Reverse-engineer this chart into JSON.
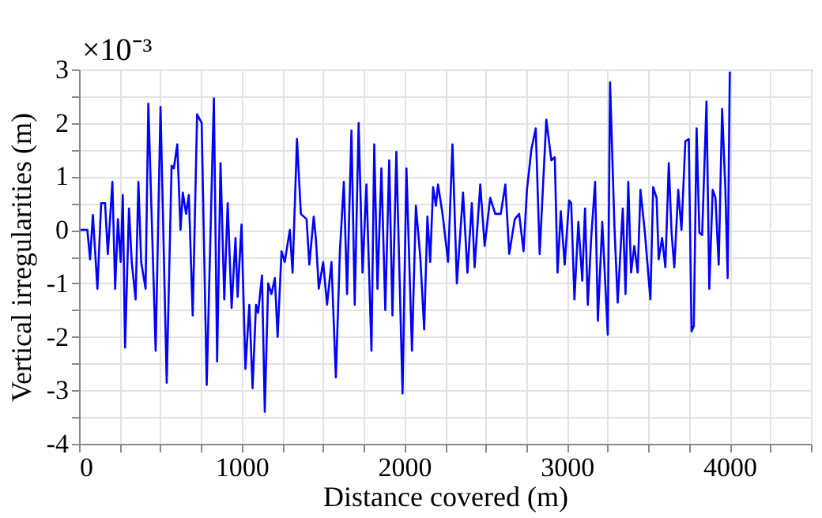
{
  "chart_data": {
    "type": "line",
    "xlabel": "Distance covered (m)",
    "ylabel": "Vertical irregularities (m)",
    "annotations": [
      "×10⁻³"
    ],
    "xlim": [
      0,
      4500
    ],
    "ylim": [
      -4,
      3
    ],
    "xticks": [
      0,
      {
        "value": 250,
        "label": null
      },
      {
        "value": 500,
        "label": null
      },
      {
        "value": 750,
        "label": null
      },
      1000,
      {
        "value": 1250,
        "label": null
      },
      {
        "value": 1500,
        "label": null
      },
      {
        "value": 1750,
        "label": null
      },
      2000,
      {
        "value": 2250,
        "label": null
      },
      {
        "value": 2500,
        "label": null
      },
      {
        "value": 2750,
        "label": null
      },
      3000,
      {
        "value": 3250,
        "label": null
      },
      {
        "value": 3500,
        "label": null
      },
      {
        "value": 3750,
        "label": null
      },
      4000,
      {
        "value": 4250,
        "label": null
      },
      {
        "value": 4500,
        "label": null
      }
    ],
    "yticks": [
      -4,
      {
        "value": -3.5,
        "label": null
      },
      -3,
      {
        "value": -2.5,
        "label": null
      },
      -2,
      {
        "value": -1.5,
        "label": null
      },
      -1,
      {
        "value": -0.5,
        "label": null
      },
      0,
      {
        "value": 0.5,
        "label": null
      },
      1,
      {
        "value": 1.5,
        "label": null
      },
      2,
      {
        "value": 2.5,
        "label": null
      },
      3
    ],
    "grid": true,
    "marker": "none",
    "line_style": "solid",
    "series": [
      {
        "color": "#0000ff",
        "x": [
          10,
          51,
          68,
          85,
          113,
          136,
          160,
          177,
          205,
          222,
          239,
          256,
          269,
          283,
          307,
          324,
          348,
          365,
          382,
          409,
          426,
          471,
          501,
          539,
          569,
          583,
          604,
          624,
          638,
          658,
          675,
          699,
          726,
          754,
          785,
          829,
          849,
          870,
          893,
          914,
          938,
          962,
          975,
          999,
          1023,
          1047,
          1067,
          1088,
          1101,
          1125,
          1142,
          1163,
          1183,
          1204,
          1221,
          1245,
          1265,
          1296,
          1313,
          1340,
          1364,
          1399,
          1416,
          1443,
          1457,
          1474,
          1501,
          1525,
          1552,
          1579,
          1604,
          1628,
          1648,
          1675,
          1695,
          1719,
          1743,
          1767,
          1798,
          1815,
          1835,
          1859,
          1883,
          1907,
          1927,
          1951,
          1989,
          2013,
          2047,
          2071,
          2098,
          2122,
          2142,
          2159,
          2177,
          2194,
          2207,
          2235,
          2269,
          2296,
          2323,
          2361,
          2388,
          2415,
          2432,
          2467,
          2494,
          2528,
          2559,
          2593,
          2621,
          2645,
          2679,
          2706,
          2733,
          2754,
          2781,
          2808,
          2832,
          2873,
          2904,
          2925,
          2942,
          2962,
          2986,
          3013,
          3026,
          3046,
          3070,
          3094,
          3111,
          3128,
          3149,
          3173,
          3190,
          3217,
          3251,
          3265,
          3292,
          3312,
          3343,
          3360,
          3377,
          3394,
          3414,
          3435,
          3452,
          3479,
          3513,
          3530,
          3551,
          3564,
          3585,
          3605,
          3626,
          3643,
          3660,
          3684,
          3704,
          3728,
          3749,
          3766,
          3780,
          3797,
          3814,
          3831,
          3858,
          3875,
          3896,
          3913,
          3933,
          3954,
          3974,
          3988,
          4001
        ],
        "values": [
          0,
          0,
          -0.55,
          0.28,
          -1.1,
          0.5,
          0.5,
          -0.45,
          0.9,
          -1.1,
          0.2,
          -0.6,
          0.65,
          -2.2,
          0.4,
          -0.6,
          -1.3,
          0.9,
          -0.6,
          -1.1,
          2.36,
          -2.26,
          2.3,
          -2.86,
          1.2,
          1.15,
          1.6,
          0,
          0.7,
          0.3,
          0.65,
          -1.6,
          2.16,
          2.0,
          -2.9,
          2.46,
          -2.46,
          1.25,
          -1.3,
          0.5,
          -1.46,
          -0.15,
          -1.25,
          0.1,
          -2.6,
          -1.4,
          -2.96,
          -1.4,
          -1.55,
          -0.85,
          -3.4,
          -1.0,
          -1.2,
          -0.9,
          -2.0,
          -0.4,
          -0.6,
          0,
          -0.8,
          1.7,
          0.3,
          0.2,
          -0.65,
          0.25,
          -0.2,
          -1.1,
          -0.6,
          -1.4,
          -0.6,
          -2.76,
          -0.4,
          0.9,
          -1.2,
          1.86,
          -1.4,
          2.0,
          -0.8,
          0.85,
          -2.26,
          1.6,
          -1.1,
          1.15,
          -1.5,
          1.3,
          -1.6,
          1.46,
          -3.06,
          1.15,
          -2.26,
          0.45,
          -0.5,
          -1.86,
          0.25,
          -0.6,
          0.8,
          0.45,
          0.85,
          0.3,
          -0.6,
          1.6,
          -1.0,
          0.7,
          -0.8,
          0.5,
          -0.7,
          0.85,
          -0.3,
          0.6,
          0.3,
          0.3,
          0.85,
          -0.45,
          0.2,
          0.3,
          -0.4,
          0.75,
          1.5,
          1.9,
          -0.45,
          2.06,
          1.3,
          1.36,
          -0.8,
          0.35,
          -0.65,
          0.55,
          0.5,
          -1.3,
          0.15,
          -0.95,
          0.4,
          -1.4,
          -0.15,
          0.9,
          -1.7,
          0.15,
          -1.96,
          2.76,
          0.05,
          -1.36,
          0.4,
          -1.2,
          0.9,
          -0.8,
          -0.3,
          -0.8,
          0.75,
          -0.05,
          -1.3,
          0.8,
          0.6,
          -0.55,
          -0.15,
          -0.7,
          1.25,
          -0.05,
          -0.7,
          0.75,
          0,
          1.66,
          1.7,
          -1.9,
          -1.8,
          1.9,
          -0.05,
          -0.1,
          2.4,
          -1.1,
          0.75,
          0.6,
          -0.65,
          2.26,
          0.75,
          -0.9,
          2.96
        ]
      }
    ]
  }
}
